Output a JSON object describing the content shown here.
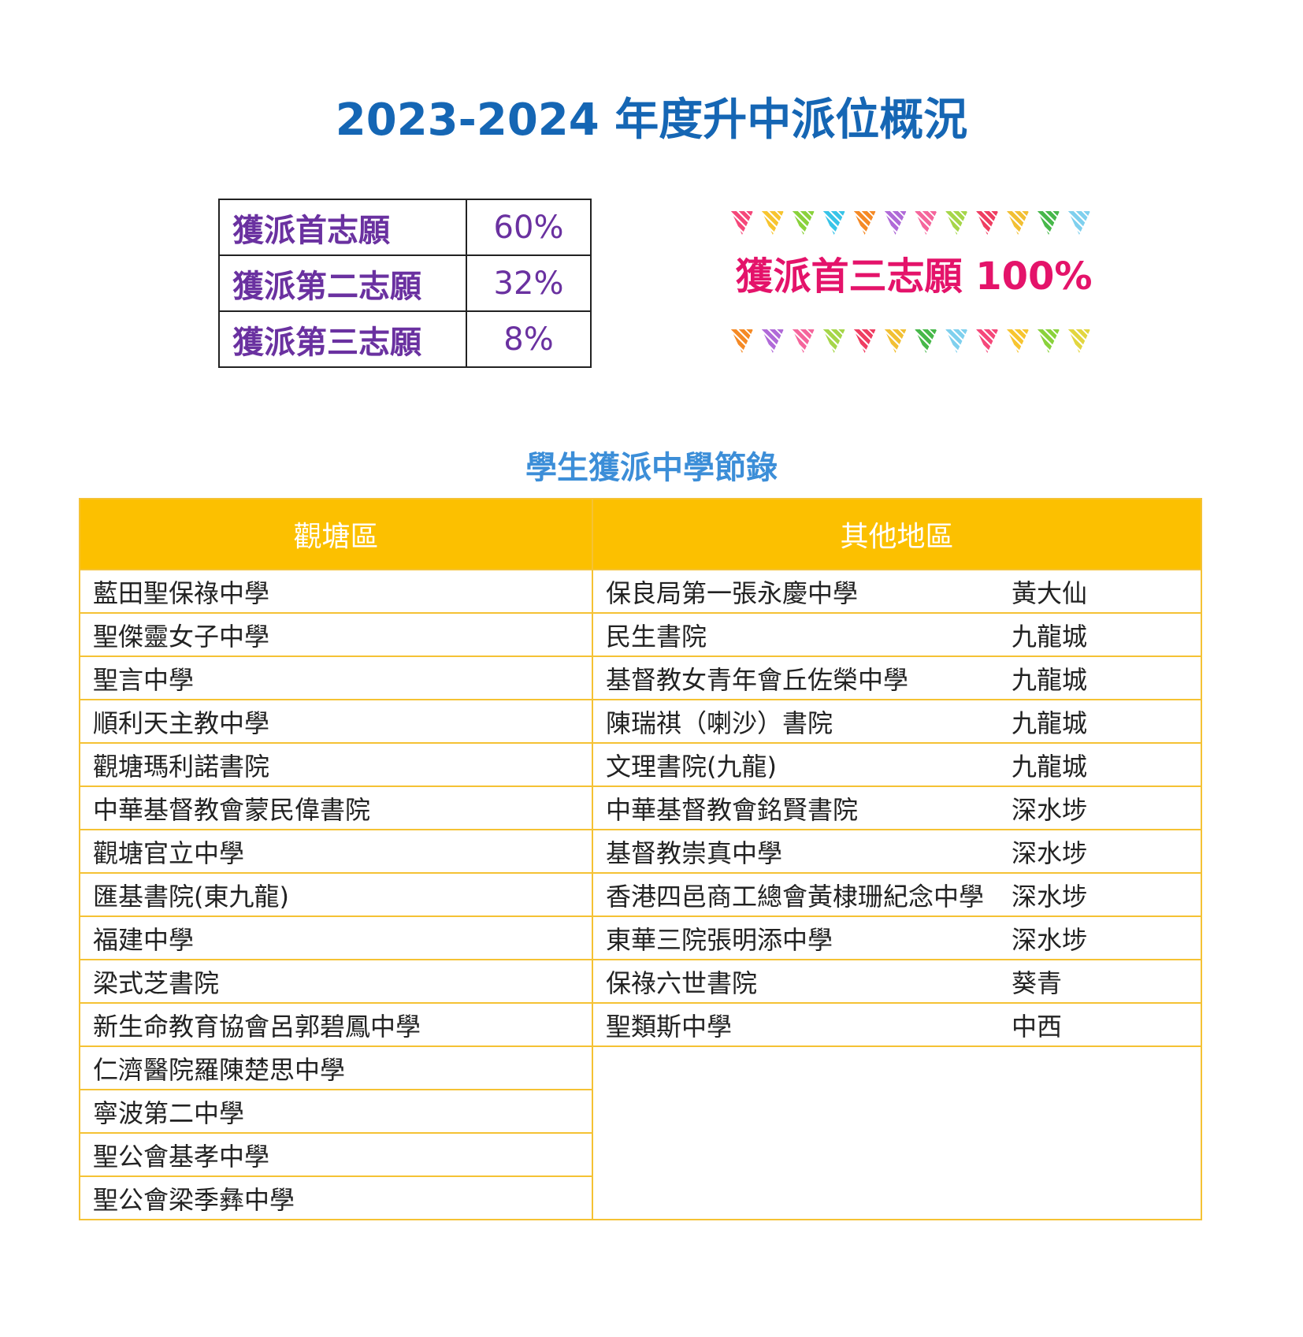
{
  "title": "2023-2024 年度升中派位概況",
  "rates": [
    {
      "label": "獲派首志願",
      "value": "60%"
    },
    {
      "label": "獲派第二志願",
      "value": "32%"
    },
    {
      "label": "獲派第三志願",
      "value": "8%"
    }
  ],
  "banner_text": "獲派首三志願 100%",
  "bunting_colors_top": [
    "#f5487a",
    "#f7c530",
    "#8ad23c",
    "#39c4e8",
    "#f58a26",
    "#b06ad8",
    "#f5669c",
    "#a6d64a",
    "#ef3e62",
    "#f2c034",
    "#47b84a",
    "#7fd0ee"
  ],
  "bunting_colors_bottom": [
    "#f58a26",
    "#b06ad8",
    "#f5669c",
    "#a6d64a",
    "#ef3e62",
    "#f2c034",
    "#47b84a",
    "#7fd0ee",
    "#f5487a",
    "#f7c530",
    "#8ad23c",
    "#e2d640"
  ],
  "subtitle": "學生獲派中學節錄",
  "columns": [
    "觀塘區",
    "其他地區"
  ],
  "kwun_tong": [
    "藍田聖保祿中學",
    "聖傑靈女子中學",
    "聖言中學",
    "順利天主教中學",
    "觀塘瑪利諾書院",
    "中華基督教會蒙民偉書院",
    "觀塘官立中學",
    "匯基書院(東九龍)",
    "福建中學",
    "梁式芝書院",
    "新生命教育協會呂郭碧鳳中學",
    "仁濟醫院羅陳楚思中學",
    "寧波第二中學",
    "聖公會基孝中學",
    "聖公會梁季彝中學"
  ],
  "other": [
    {
      "school": "保良局第一張永慶中學",
      "district": "黃大仙"
    },
    {
      "school": "民生書院",
      "district": "九龍城"
    },
    {
      "school": "基督教女青年會丘佐榮中學",
      "district": "九龍城"
    },
    {
      "school": "陳瑞祺（喇沙）書院",
      "district": "九龍城"
    },
    {
      "school": "文理書院(九龍)",
      "district": "九龍城"
    },
    {
      "school": "中華基督教會銘賢書院",
      "district": "深水埗"
    },
    {
      "school": "基督教崇真中學",
      "district": "深水埗"
    },
    {
      "school": "香港四邑商工總會黃棣珊紀念中學",
      "district": "深水埗"
    },
    {
      "school": "東華三院張明添中學",
      "district": "深水埗"
    },
    {
      "school": "保祿六世書院",
      "district": "葵青"
    },
    {
      "school": "聖類斯中學",
      "district": "中西"
    }
  ]
}
